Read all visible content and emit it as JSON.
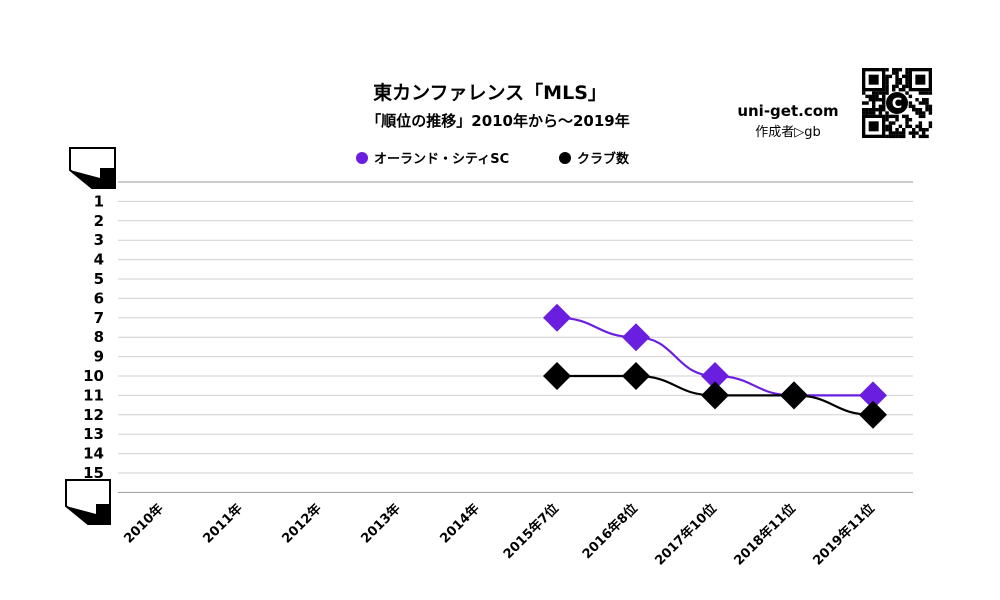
{
  "chart_data": {
    "type": "line",
    "title": "東カンファレンス「MLS」",
    "subtitle": "「順位の推移」2010年から～2019年",
    "categories": [
      "2010年",
      "2011年",
      "2012年",
      "2013年",
      "2014年",
      "2015年7位",
      "2016年8位",
      "2017年10位",
      "2018年11位",
      "2019年11位"
    ],
    "series": [
      {
        "name": "オーランド・シティSC",
        "color": "#6a1fe0",
        "values": [
          null,
          null,
          null,
          null,
          null,
          7,
          8,
          10,
          11,
          11
        ]
      },
      {
        "name": "クラブ数",
        "color": "#000000",
        "values": [
          null,
          null,
          null,
          null,
          null,
          10,
          10,
          11,
          11,
          12
        ]
      }
    ],
    "y_ticks": [
      "1",
      "2",
      "3",
      "4",
      "5",
      "6",
      "7",
      "8",
      "9",
      "10",
      "11",
      "12",
      "13",
      "14",
      "15"
    ],
    "ylim": [
      0,
      16
    ],
    "y_inverted": true,
    "grid": true,
    "legend_position": "top-center"
  },
  "site": {
    "domain": "uni-get.com",
    "author": "作成者▷gb"
  },
  "qr_badge": {
    "glyph": "C",
    "icon": "qr-code-icon"
  }
}
